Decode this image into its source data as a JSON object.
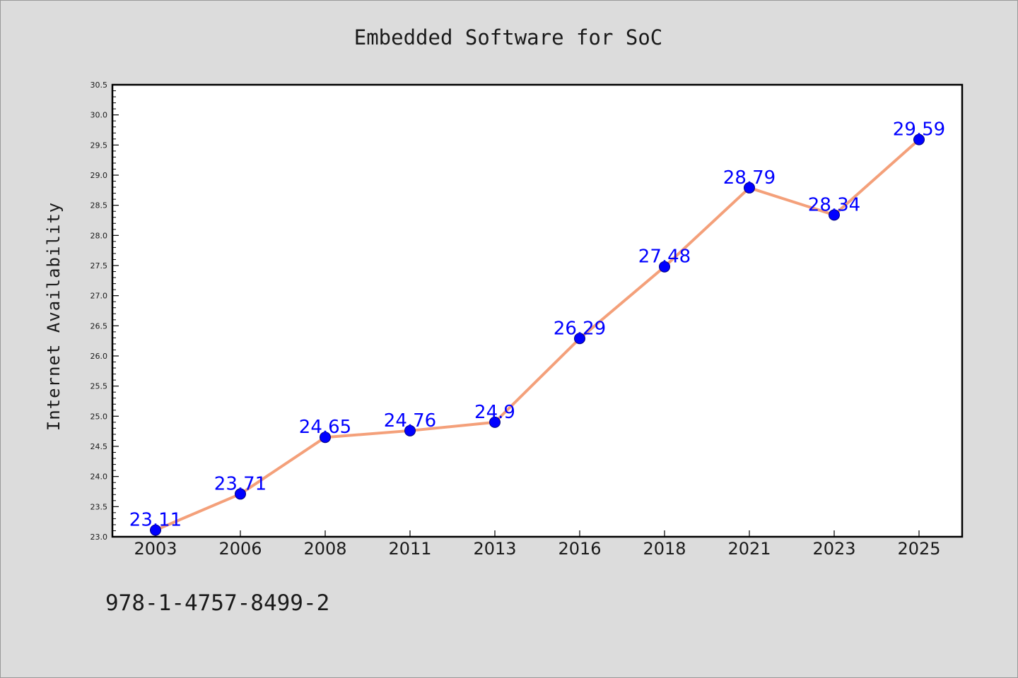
{
  "chart_data": {
    "type": "line",
    "title": "Embedded Software for SoC",
    "xlabel": "",
    "ylabel": "Internet Availability",
    "categories": [
      "2003",
      "2006",
      "2008",
      "2011",
      "2013",
      "2016",
      "2018",
      "2021",
      "2023",
      "2025"
    ],
    "series": [
      {
        "values": [
          23.11,
          23.71,
          24.65,
          24.76,
          24.9,
          26.29,
          27.48,
          28.79,
          28.34,
          29.59
        ],
        "labels": [
          "23.11",
          "23.71",
          "24.65",
          "24.76",
          "24.9",
          "26.29",
          "27.48",
          "28.79",
          "28.34",
          "29.59"
        ]
      }
    ],
    "ylim": [
      23.0,
      30.5
    ],
    "yticks": [
      "23.0",
      "23.5",
      "24.0",
      "24.5",
      "25.0",
      "25.5",
      "26.0",
      "26.5",
      "27.0",
      "27.5",
      "28.0",
      "28.5",
      "29.0",
      "29.5",
      "30.0",
      "30.5"
    ],
    "grid": false,
    "legend": "none",
    "colors": {
      "line": "#f4a07a",
      "marker_fill": "#0000ff",
      "marker_stroke": "#000080",
      "data_label": "#0000ff",
      "plot_background": "#ffffff",
      "figure_background": "#dcdcdc"
    }
  },
  "footer": {
    "code": "978-1-4757-8499-2"
  }
}
